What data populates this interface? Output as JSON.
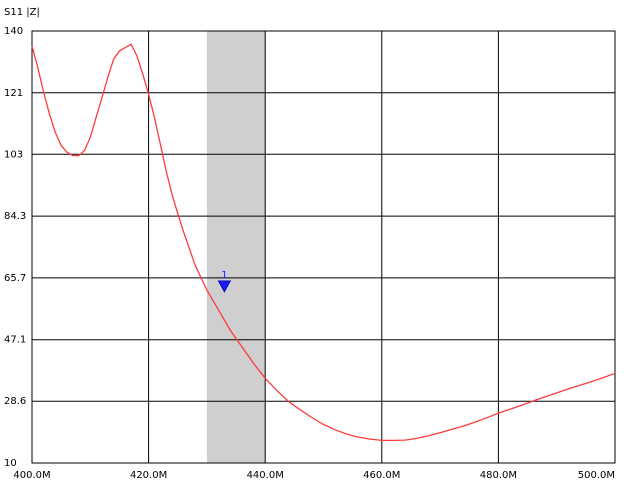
{
  "chart_data": {
    "type": "line",
    "title": "S11 |Z|",
    "xlabel": "",
    "ylabel": "",
    "xlim": [
      400,
      500
    ],
    "ylim": [
      10,
      140
    ],
    "x_ticks": [
      "400.0M",
      "420.0M",
      "440.0M",
      "460.0M",
      "480.0M",
      "500.0M"
    ],
    "x_tick_values": [
      400,
      420,
      440,
      460,
      480,
      500
    ],
    "y_ticks": [
      "140",
      "121",
      "103",
      "84.3",
      "65.7",
      "47.1",
      "28.6",
      "10"
    ],
    "y_tick_values": [
      140,
      121.4,
      102.9,
      84.3,
      65.7,
      47.1,
      28.6,
      10
    ],
    "grid": true,
    "highlight_band": {
      "x_start": 430,
      "x_end": 440
    },
    "marker": {
      "label": "1",
      "x": 433,
      "y": 63
    },
    "series": [
      {
        "color": "#ff3b3b",
        "x": [
          400,
          401,
          402,
          403,
          404,
          405,
          406,
          407,
          408,
          409,
          410,
          411,
          412,
          413,
          414,
          415,
          416,
          417,
          418,
          419,
          420,
          421,
          422,
          423,
          424,
          425,
          426,
          427,
          428,
          430,
          432,
          434,
          436,
          438,
          440,
          442,
          444,
          446,
          448,
          450,
          452,
          454,
          456,
          458,
          460,
          462,
          464,
          466,
          468,
          470,
          472,
          474,
          476,
          478,
          480,
          482,
          484,
          486,
          488,
          490,
          492,
          494,
          496,
          498,
          500
        ],
        "y": [
          135.5,
          129,
          121.5,
          115,
          109.5,
          105.5,
          103.5,
          102.5,
          102.5,
          104,
          108,
          114,
          120,
          126,
          131.5,
          134,
          135,
          136,
          132.5,
          127,
          121,
          114,
          106,
          98,
          91,
          85,
          79.5,
          74.5,
          69.5,
          62,
          56,
          50,
          45,
          40,
          35.5,
          31.8,
          28.5,
          26,
          23.7,
          21.6,
          20,
          18.7,
          17.8,
          17.2,
          16.8,
          16.8,
          16.9,
          17.4,
          18.2,
          19.1,
          20.1,
          21.1,
          22.3,
          23.6,
          25,
          26.2,
          27.4,
          28.7,
          29.9,
          31.1,
          32.3,
          33.4,
          34.5,
          35.7,
          37
        ]
      }
    ]
  }
}
